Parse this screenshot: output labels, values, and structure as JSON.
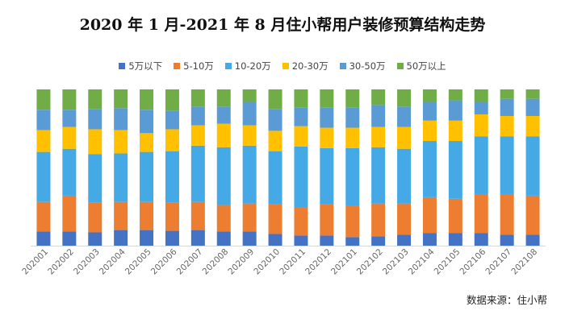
{
  "title": "2020 年 1 月-2021 年 8 月住小帮用户装修预算结构走势",
  "source": "数据来源：住小帮",
  "chart_data": {
    "type": "bar",
    "stacked": true,
    "normalized": true,
    "legend_position": "top",
    "grid": false,
    "categories": [
      "202001",
      "202002",
      "202003",
      "202004",
      "202005",
      "202006",
      "202007",
      "202008",
      "202009",
      "202010",
      "202011",
      "202012",
      "202101",
      "202102",
      "202103",
      "202104",
      "202105",
      "202106",
      "202107",
      "202108"
    ],
    "series": [
      {
        "name": "5万以下",
        "color": "#4472C4",
        "values": [
          9,
          9,
          8.5,
          10,
          10,
          9.5,
          10,
          9,
          9,
          7.5,
          6.5,
          6.5,
          5.5,
          6,
          7,
          8,
          8,
          8,
          7,
          7
        ]
      },
      {
        "name": "5-10万",
        "color": "#ED7D31",
        "values": [
          19,
          23,
          19,
          18,
          18,
          18,
          18,
          17,
          18,
          19,
          18,
          20,
          20,
          21,
          20,
          23,
          22,
          25,
          26,
          25
        ]
      },
      {
        "name": "10-20万",
        "color": "#45A9E6",
        "values": [
          32,
          30,
          31,
          31,
          32,
          33,
          36,
          37,
          37,
          34,
          39,
          36,
          37,
          36,
          35,
          36,
          37,
          37,
          37,
          38
        ]
      },
      {
        "name": "20-30万",
        "color": "#FFC000",
        "values": [
          14,
          14,
          16,
          15,
          12,
          14,
          13,
          15,
          13,
          13,
          13,
          13,
          13,
          13,
          14,
          13,
          13,
          14,
          13,
          13
        ]
      },
      {
        "name": "30-50万",
        "color": "#5B9BD5",
        "values": [
          13,
          11,
          13,
          14,
          15,
          12,
          12,
          11,
          15,
          14,
          12,
          13,
          13,
          14,
          13,
          12,
          13,
          8,
          11,
          11
        ]
      },
      {
        "name": "50万以上",
        "color": "#70AD47",
        "values": [
          13,
          13,
          12.5,
          12,
          13,
          13.5,
          11,
          11,
          8,
          12.5,
          11.5,
          11.5,
          11.5,
          10,
          11,
          8,
          7,
          8,
          6,
          6
        ]
      }
    ]
  }
}
